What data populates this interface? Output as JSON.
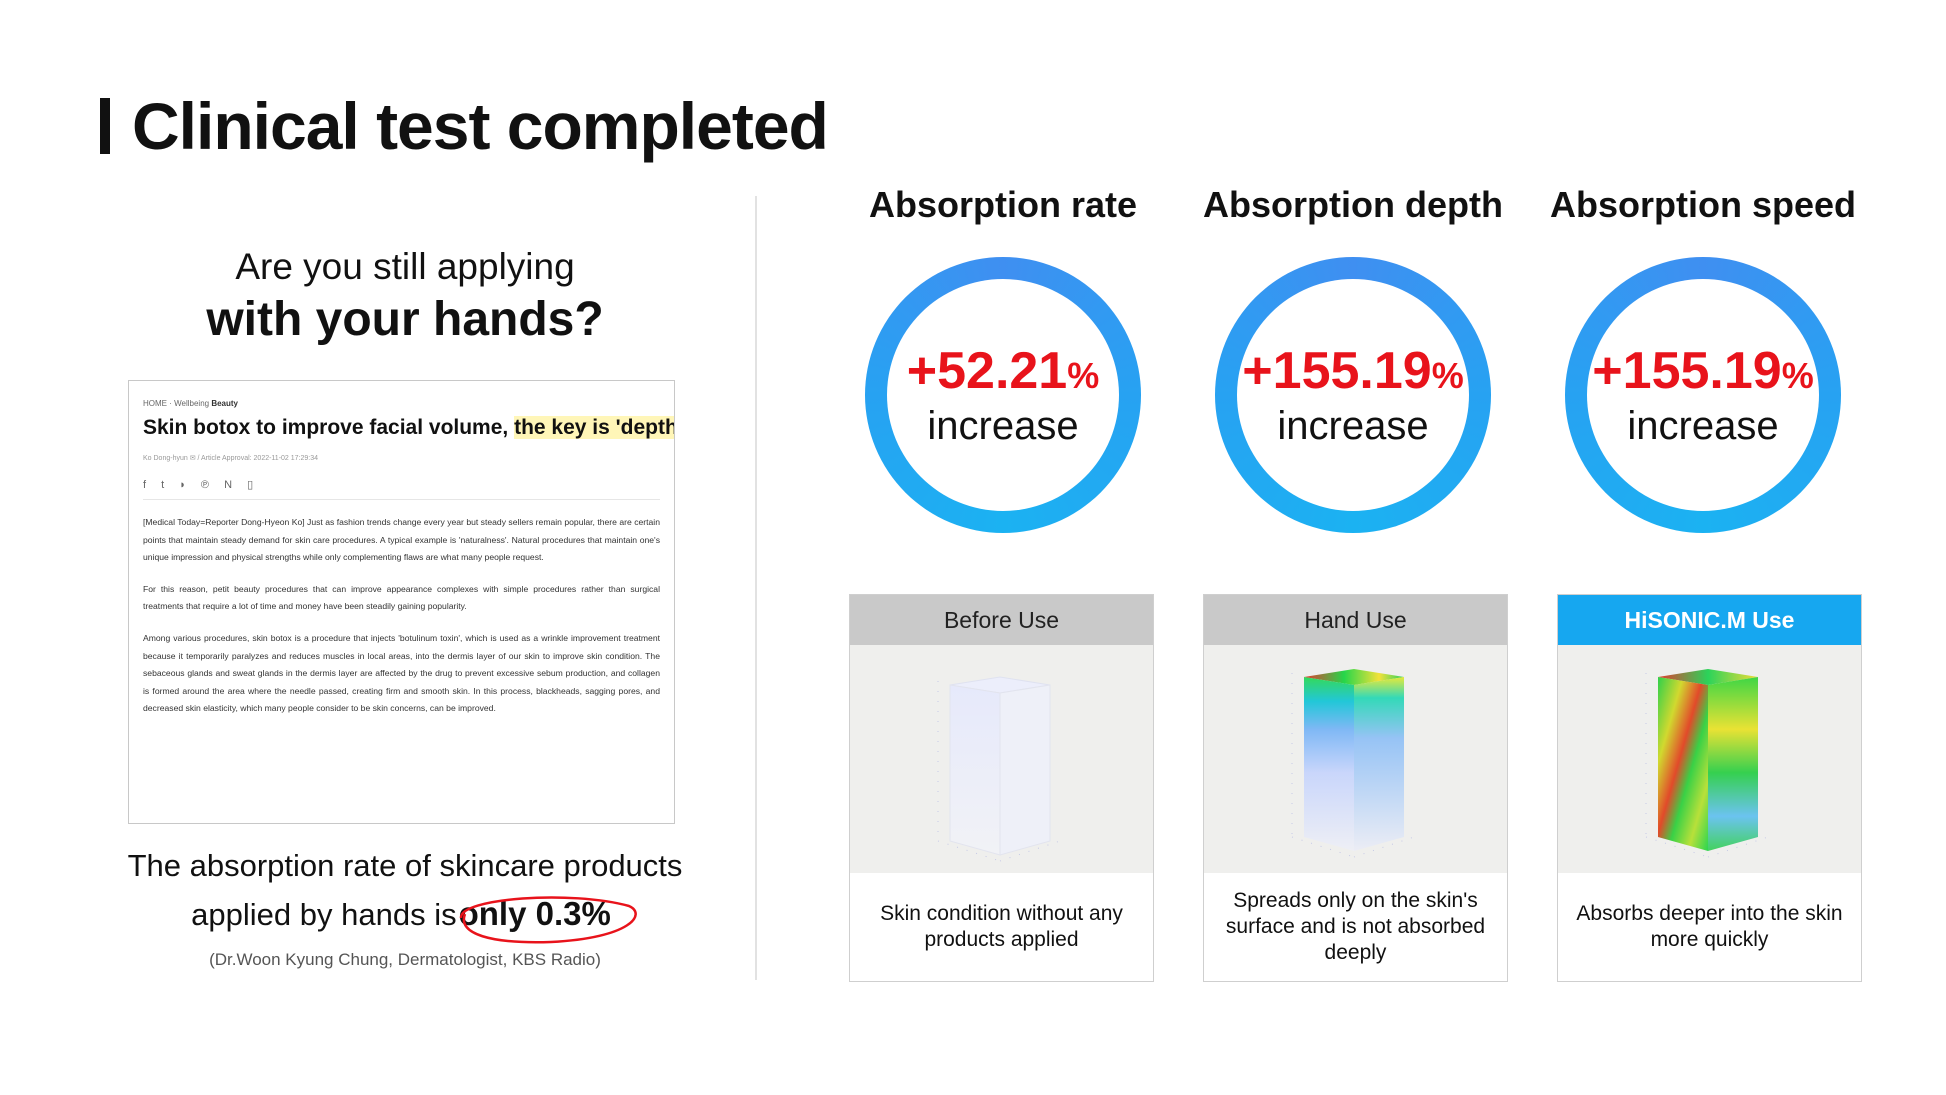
{
  "page_title": "Clinical test completed",
  "left": {
    "question_line1": "Are you still applying",
    "question_line2": "with your hands?",
    "article": {
      "breadcrumb_home": "HOME · Wellbeing",
      "breadcrumb_section": "Beauty",
      "headline_plain": "Skin botox to improve facial volume,",
      "headline_highlight": "the key is 'depth'",
      "byline": "Ko Dong-hyun ✉ / Article Approval: 2022-11-02 17:29:34",
      "share_icons": "f  t  ◗  ℗  N  ▯",
      "paragraphs": [
        "[Medical Today=Reporter Dong-Hyeon Ko] Just as fashion trends change every year but steady sellers remain popular, there are certain points that maintain steady demand for skin care procedures. A typical example is 'naturalness'. Natural procedures that maintain one's unique impression and physical strengths while only complementing flaws are what many people request.",
        "For this reason, petit beauty procedures that can improve appearance complexes with simple procedures rather than surgical treatments that require a lot of time and money have been steadily gaining popularity.",
        "Among various procedures, skin botox is a procedure that injects 'botulinum toxin', which is used as a wrinkle improvement treatment because it temporarily paralyzes and reduces muscles in local areas, into the dermis layer of our skin to improve skin condition. The sebaceous glands and sweat glands in the dermis layer are affected by the drug to prevent excessive sebum production, and collagen is formed around the area where the needle passed, creating firm and smooth skin. In this process, blackheads, sagging pores, and decreased skin elasticity, which many people consider to be skin concerns, can be improved."
      ]
    },
    "caption_line1": "The absorption rate of skincare products",
    "caption_line2_prefix": "applied by hands is",
    "caption_emphasis": "only 0.3%",
    "source": "(Dr.Woon Kyung Chung, Dermatologist, KBS Radio)"
  },
  "metrics": [
    {
      "label": "Absorption rate",
      "value": "+52.21",
      "unit": "%",
      "suffix": "increase"
    },
    {
      "label": "Absorption depth",
      "value": "+155.19",
      "unit": "%",
      "suffix": "increase"
    },
    {
      "label": "Absorption speed",
      "value": "+155.19",
      "unit": "%",
      "suffix": "increase"
    }
  ],
  "cards": [
    {
      "title": "Before Use",
      "caption": "Skin condition without any products applied"
    },
    {
      "title": "Hand Use",
      "caption": "Spreads only on the skin's surface and is not absorbed deeply"
    },
    {
      "title": "HiSONIC.M Use",
      "caption": "Absorbs deeper into the skin more quickly"
    }
  ],
  "colors": {
    "accent_red": "#e8131b",
    "ring_blue": "#27a2f2",
    "card_accent": "#16a7f0",
    "card_gray": "#c9c9c9"
  }
}
